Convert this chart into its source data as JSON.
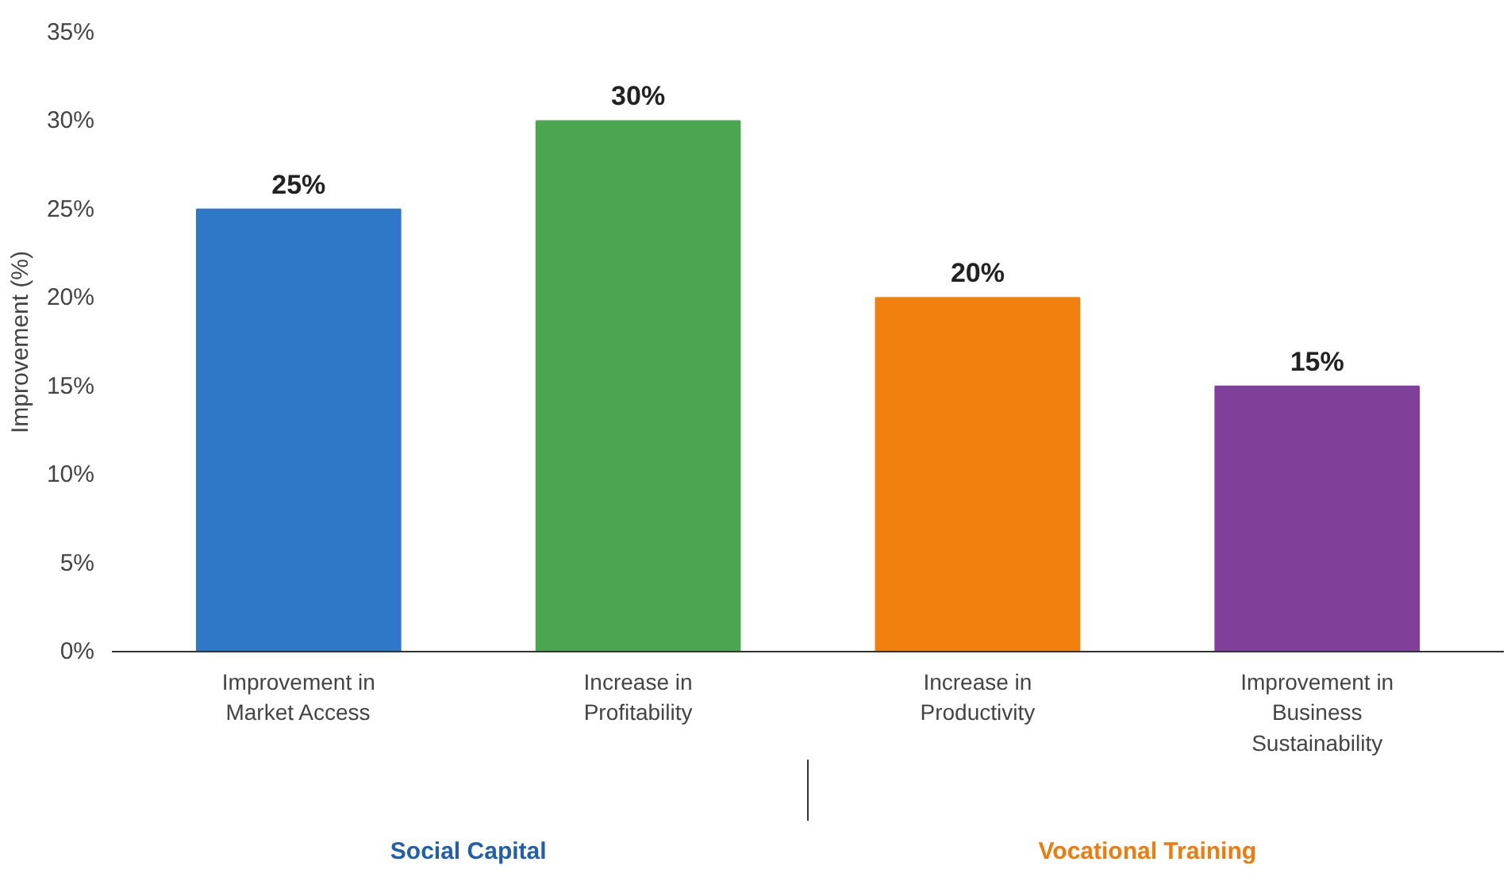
{
  "chart_data": {
    "type": "bar",
    "ylabel": "Improvement (%)",
    "categories": [
      "Improvement in Market Access",
      "Increase in Profitability",
      "Increase in Productivity",
      "Improvement in Business Sustainability"
    ],
    "values": [
      25,
      30,
      20,
      15
    ],
    "colors": [
      "#2f78c8",
      "#4ba650",
      "#f2800e",
      "#7f3f9a"
    ],
    "value_labels": [
      "25%",
      "30%",
      "20%",
      "15%"
    ],
    "ylim": [
      0,
      35
    ],
    "yticks": [
      {
        "value": 0,
        "label": "0%"
      },
      {
        "value": 5,
        "label": "5%"
      },
      {
        "value": 10,
        "label": "10%"
      },
      {
        "value": 15,
        "label": "15%"
      },
      {
        "value": 20,
        "label": "20%"
      },
      {
        "value": 25,
        "label": "25%"
      },
      {
        "value": 30,
        "label": "30%"
      },
      {
        "value": 35,
        "label": "35%"
      }
    ],
    "grid": false,
    "annotations": [
      "Social Capital",
      "Vocational Training"
    ]
  }
}
